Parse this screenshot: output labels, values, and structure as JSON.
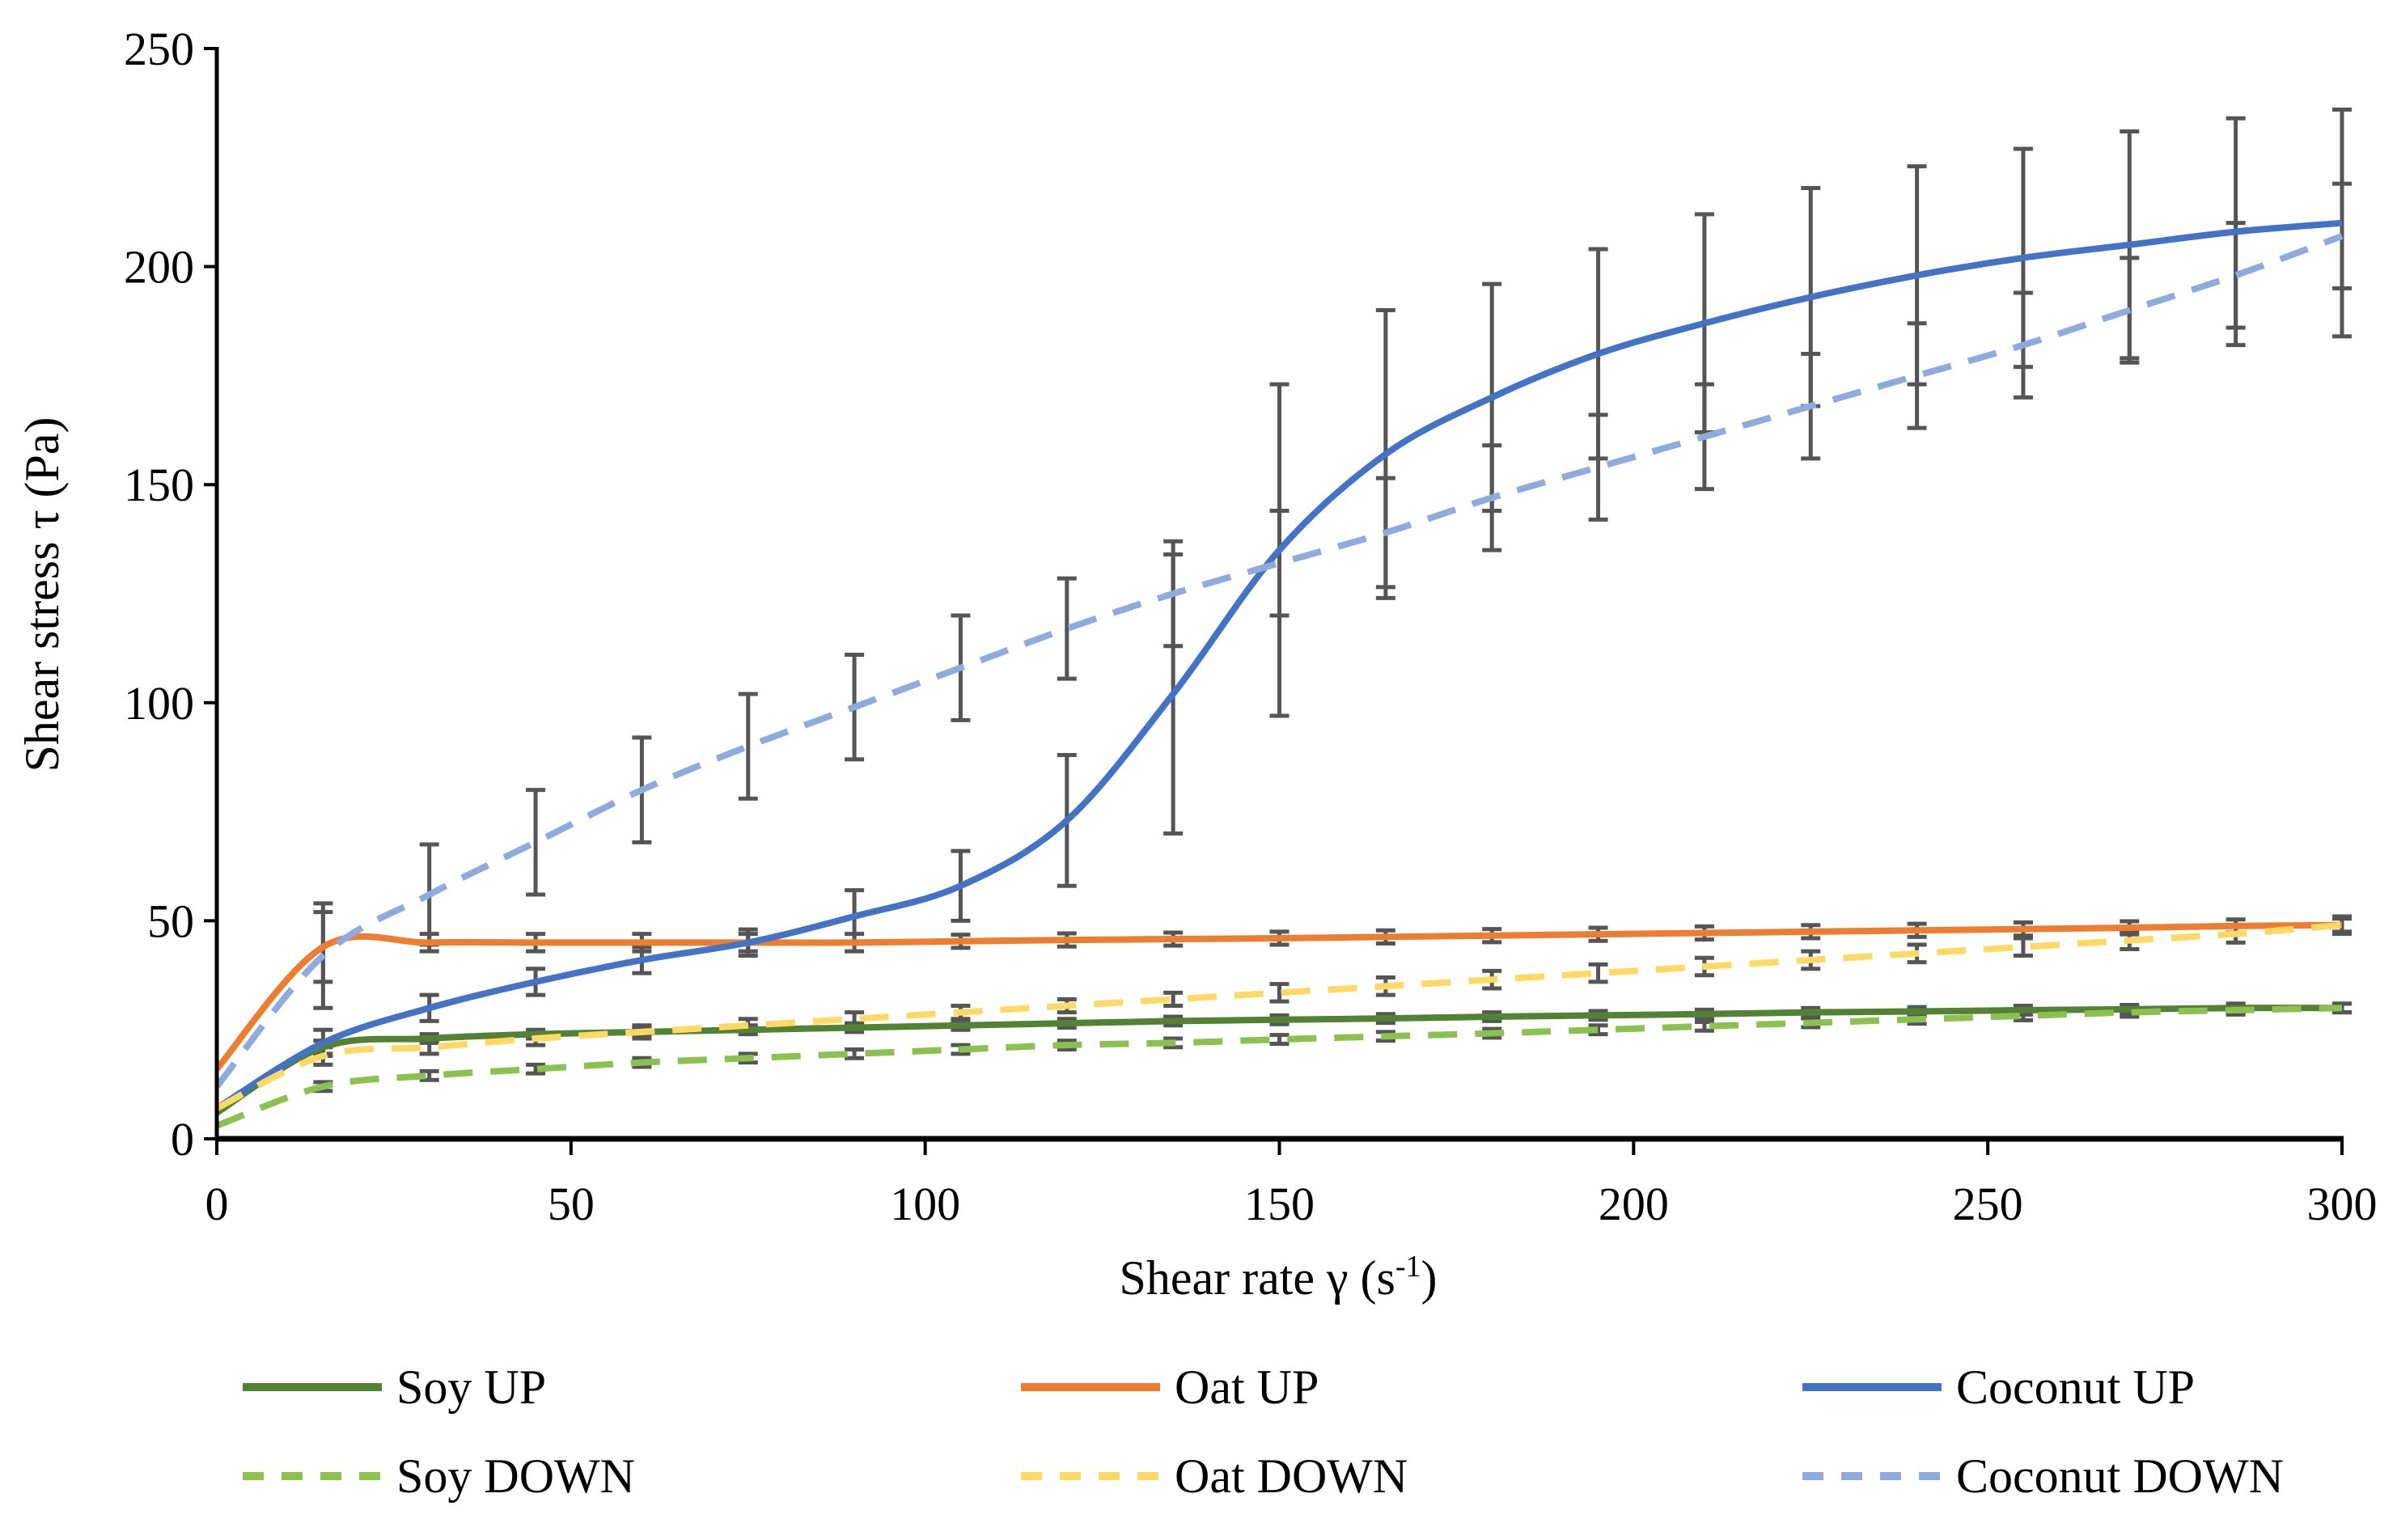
{
  "chart_data": {
    "type": "line",
    "title": "",
    "xlabel": "Shear rate γ (s",
    "xlabel_sup": "-1",
    "xlabel_end": ")",
    "ylabel": "Shear stress τ (Pa)",
    "xlim": [
      0,
      300
    ],
    "ylim": [
      0,
      250
    ],
    "xticks": [
      "0",
      "50",
      "100",
      "150",
      "200",
      "250",
      "300"
    ],
    "yticks": [
      "0",
      "50",
      "100",
      "150",
      "200",
      "250"
    ],
    "grid": false,
    "legend_position": "bottom",
    "x": [
      0,
      15,
      30,
      45,
      60,
      75,
      90,
      105,
      120,
      135,
      150,
      165,
      180,
      195,
      210,
      225,
      240,
      255,
      270,
      285,
      300
    ],
    "series": [
      {
        "name": "Soy UP",
        "color": "#548235",
        "dashed": false,
        "values": [
          6,
          21,
          23,
          24,
          24.5,
          25,
          25.5,
          26,
          26.5,
          27,
          27.3,
          27.6,
          28,
          28.3,
          28.6,
          29,
          29.2,
          29.5,
          29.7,
          30,
          30
        ],
        "errors": [
          1,
          1.5,
          1,
          1,
          1,
          1,
          1,
          1,
          1,
          1,
          1,
          1,
          1,
          1,
          1,
          1,
          1,
          1,
          1,
          1,
          1
        ]
      },
      {
        "name": "Oat UP",
        "color": "#ED7D31",
        "dashed": false,
        "values": [
          16,
          44,
          45,
          45,
          45,
          45,
          45,
          45.3,
          45.6,
          45.8,
          46,
          46.3,
          46.6,
          46.9,
          47.2,
          47.5,
          47.8,
          48.1,
          48.4,
          48.8,
          49
        ],
        "errors": [
          2,
          8,
          2,
          2,
          2,
          2,
          2,
          1.5,
          1.5,
          1.5,
          1.5,
          1.5,
          1.5,
          1.5,
          1.5,
          1.5,
          1.5,
          1.5,
          1.5,
          1.5,
          1.5
        ]
      },
      {
        "name": "Coconut UP",
        "color": "#4472C4",
        "dashed": false,
        "values": [
          7,
          22,
          30,
          36,
          41,
          45,
          51,
          58,
          73,
          102,
          135,
          157,
          170,
          180,
          187,
          193,
          198,
          202,
          205,
          208,
          210
        ],
        "errors": [
          0,
          3,
          3,
          3,
          3,
          3,
          6,
          8,
          15,
          32,
          38,
          33,
          26,
          24,
          25,
          25,
          25,
          25,
          26,
          26,
          26
        ]
      },
      {
        "name": "Soy DOWN",
        "color": "#8CC152",
        "dashed": true,
        "values": [
          3,
          12,
          14.5,
          16,
          17.5,
          18.5,
          19.5,
          20.5,
          21.5,
          22,
          22.8,
          23.5,
          24.2,
          25,
          25.8,
          26.6,
          27.4,
          28.2,
          29,
          29.5,
          30
        ],
        "errors": [
          1,
          1,
          1,
          1,
          1,
          1,
          1,
          1,
          1,
          1,
          1,
          1,
          1,
          1,
          1,
          1,
          1,
          1,
          1,
          1,
          1
        ]
      },
      {
        "name": "Oat DOWN",
        "color": "#FFD966",
        "dashed": true,
        "values": [
          7,
          19,
          21,
          23,
          24.5,
          26,
          27.5,
          29,
          30.5,
          32,
          33.5,
          35,
          36.5,
          38,
          39.5,
          41,
          42.5,
          44,
          45.5,
          47,
          49
        ],
        "errors": [
          1,
          2,
          1.5,
          1.5,
          1.5,
          1.5,
          1.5,
          1.5,
          1.5,
          1.5,
          2,
          2,
          2,
          2,
          2,
          2,
          2,
          2,
          2,
          2,
          2
        ]
      },
      {
        "name": "Coconut DOWN",
        "color": "#8FAADC",
        "dashed": true,
        "values": [
          12,
          42,
          56,
          68,
          80,
          90,
          99,
          108,
          117,
          125,
          132,
          139,
          147,
          154,
          161,
          168,
          175,
          182,
          190,
          198,
          207
        ],
        "errors": [
          8,
          12,
          11.5,
          12,
          12,
          12,
          12,
          12,
          11.5,
          12,
          12,
          12.5,
          12,
          12,
          12,
          12,
          12,
          12,
          12,
          12,
          12
        ]
      }
    ]
  }
}
